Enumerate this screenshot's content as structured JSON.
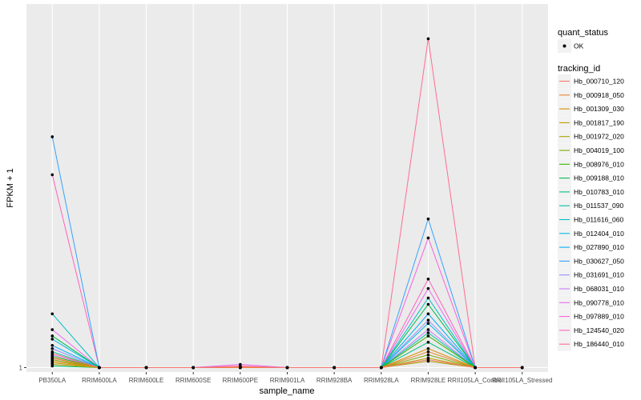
{
  "chart_data": {
    "type": "line",
    "xlabel": "sample_name",
    "ylabel": "FPKM + 1",
    "categories": [
      "PB350LA",
      "RRIM600LA",
      "RRIM600LE",
      "RRIM600SE",
      "RRIM600PE",
      "RRIM901LA",
      "RRIM928BA",
      "RRIM928LA",
      "RRIM928LE",
      "RRII105LA_Control",
      "RRII105LA_Stressed"
    ],
    "yticks": [
      {
        "label": "1",
        "value": 1
      }
    ],
    "ylim": [
      0.86,
      12.5
    ],
    "grid": true,
    "legend_placement": "right",
    "point_legend": {
      "title": "quant_status",
      "label": "OK",
      "color": "#000000"
    },
    "legend_title": "tracking_id",
    "series": [
      {
        "name": "Hb_000710_120",
        "color": "#F8766D",
        "values": [
          1.45,
          1.0,
          1.0,
          1.0,
          1.02,
          1.0,
          1.0,
          1.0,
          1.25,
          1.0,
          1.0
        ]
      },
      {
        "name": "Hb_000918_050",
        "color": "#EA8331",
        "values": [
          1.3,
          1.0,
          1.0,
          1.0,
          1.0,
          1.0,
          1.0,
          1.0,
          1.5,
          1.0,
          1.0
        ]
      },
      {
        "name": "Hb_001309_030",
        "color": "#D89000",
        "values": [
          1.2,
          1.0,
          1.0,
          1.0,
          1.0,
          1.0,
          1.0,
          1.0,
          1.6,
          1.0,
          1.0
        ]
      },
      {
        "name": "Hb_001817_190",
        "color": "#C09B00",
        "values": [
          1.15,
          1.0,
          1.0,
          1.0,
          1.0,
          1.0,
          1.0,
          1.0,
          1.3,
          1.0,
          1.0
        ]
      },
      {
        "name": "Hb_001972_020",
        "color": "#A3A500",
        "values": [
          1.1,
          1.0,
          1.0,
          1.0,
          1.0,
          1.0,
          1.0,
          1.0,
          1.2,
          1.0,
          1.0
        ]
      },
      {
        "name": "Hb_004019_100",
        "color": "#7CAE00",
        "values": [
          1.25,
          1.0,
          1.0,
          1.0,
          1.0,
          1.0,
          1.0,
          1.0,
          1.4,
          1.0,
          1.0
        ]
      },
      {
        "name": "Hb_008976_010",
        "color": "#39B600",
        "values": [
          1.35,
          1.0,
          1.0,
          1.0,
          1.0,
          1.0,
          1.0,
          1.0,
          2.0,
          1.0,
          1.0
        ]
      },
      {
        "name": "Hb_009188_010",
        "color": "#00BB4E",
        "values": [
          2.0,
          1.0,
          1.0,
          1.0,
          1.0,
          1.0,
          1.0,
          1.0,
          3.0,
          1.0,
          1.0
        ]
      },
      {
        "name": "Hb_010783_010",
        "color": "#00BF7D",
        "values": [
          1.05,
          1.0,
          1.0,
          1.0,
          1.0,
          1.0,
          1.0,
          1.0,
          1.8,
          1.0,
          1.0
        ]
      },
      {
        "name": "Hb_011537_090",
        "color": "#00C1A3",
        "values": [
          1.5,
          1.0,
          1.0,
          1.0,
          1.0,
          1.0,
          1.0,
          1.0,
          2.1,
          1.0,
          1.0
        ]
      },
      {
        "name": "Hb_011616_060",
        "color": "#00BFC4",
        "values": [
          2.7,
          1.0,
          1.0,
          1.0,
          1.0,
          1.0,
          1.0,
          1.0,
          3.2,
          1.0,
          1.0
        ]
      },
      {
        "name": "Hb_012404_010",
        "color": "#00BAE0",
        "values": [
          1.9,
          1.0,
          1.0,
          1.0,
          1.0,
          1.0,
          1.0,
          1.0,
          2.4,
          1.0,
          1.0
        ]
      },
      {
        "name": "Hb_027890_010",
        "color": "#00B0F6",
        "values": [
          1.7,
          1.0,
          1.0,
          1.0,
          1.0,
          1.0,
          1.0,
          1.0,
          2.7,
          1.0,
          1.0
        ]
      },
      {
        "name": "Hb_030627_050",
        "color": "#35A2FF",
        "values": [
          8.3,
          1.0,
          1.0,
          1.0,
          1.0,
          1.0,
          1.0,
          1.0,
          5.7,
          1.0,
          1.0
        ]
      },
      {
        "name": "Hb_031691_010",
        "color": "#9590FF",
        "values": [
          1.6,
          1.0,
          1.0,
          1.0,
          1.0,
          1.0,
          1.0,
          1.0,
          2.5,
          1.0,
          1.0
        ]
      },
      {
        "name": "Hb_068031_010",
        "color": "#C77CFF",
        "values": [
          1.4,
          1.0,
          1.0,
          1.0,
          1.0,
          1.0,
          1.0,
          1.0,
          2.2,
          1.0,
          1.0
        ]
      },
      {
        "name": "Hb_090778_010",
        "color": "#E76BF3",
        "values": [
          2.2,
          1.0,
          1.0,
          1.0,
          1.1,
          1.0,
          1.0,
          1.0,
          3.5,
          1.0,
          1.0
        ]
      },
      {
        "name": "Hb_097889_010",
        "color": "#FA62DB",
        "values": [
          1.3,
          1.0,
          1.0,
          1.0,
          1.0,
          1.0,
          1.0,
          1.0,
          5.1,
          1.0,
          1.0
        ]
      },
      {
        "name": "Hb_124540_020",
        "color": "#FF62BC",
        "values": [
          7.1,
          1.0,
          1.0,
          1.0,
          1.0,
          1.0,
          1.0,
          1.0,
          3.8,
          1.0,
          1.0
        ]
      },
      {
        "name": "Hb_186440_010",
        "color": "#FF6C91",
        "values": [
          1.2,
          1.0,
          1.0,
          1.0,
          1.05,
          1.0,
          1.0,
          1.0,
          11.4,
          1.0,
          1.0
        ]
      }
    ]
  }
}
